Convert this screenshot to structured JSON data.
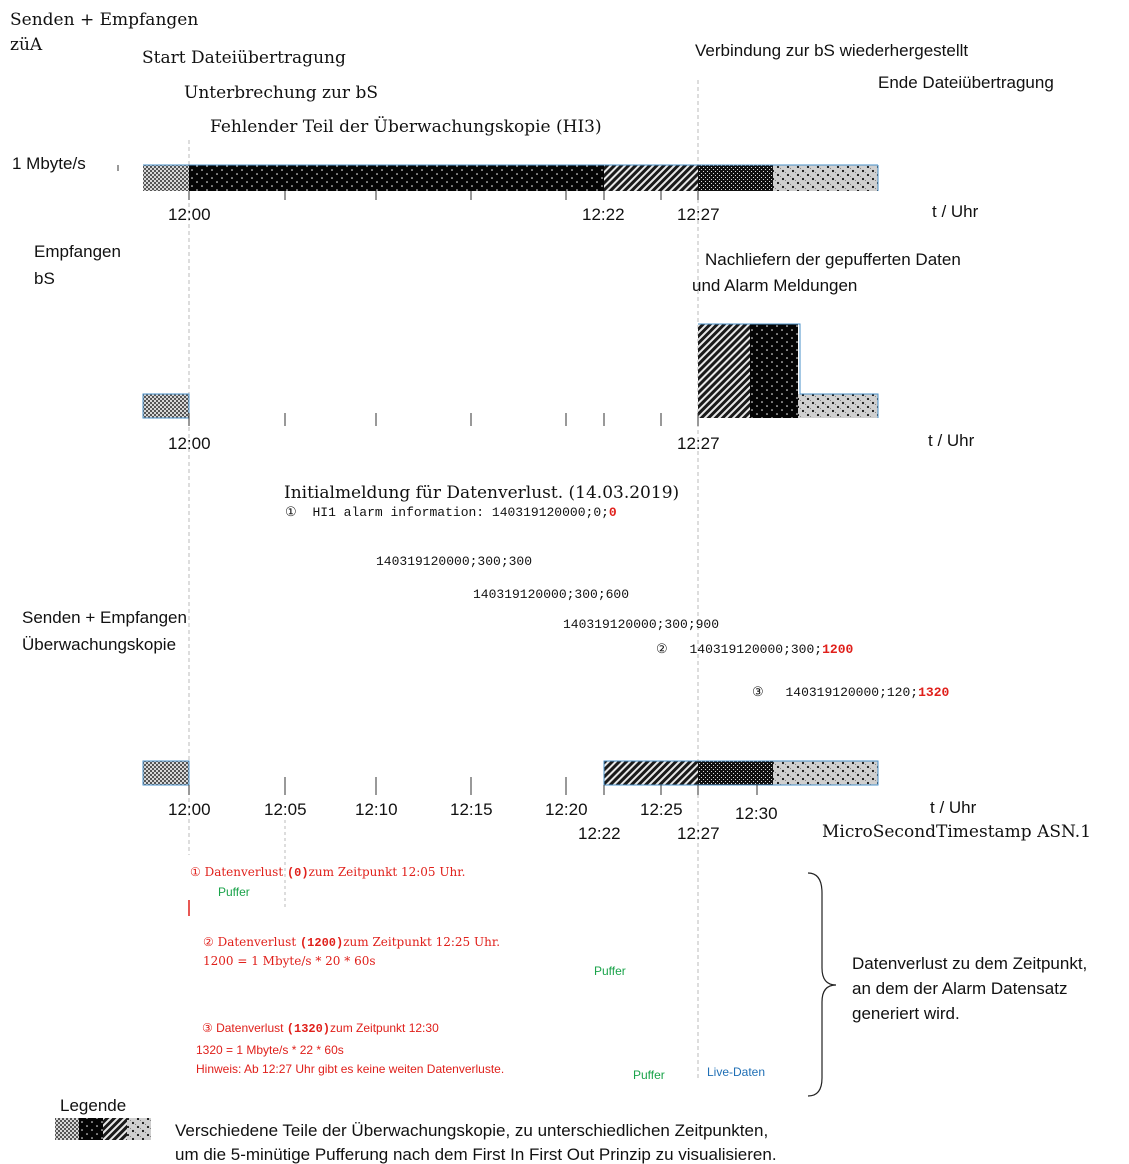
{
  "section_zua": {
    "title_line1": "Senden + Empfangen",
    "title_line2": "züA",
    "start_label": "Start Dateiübertragung",
    "interruption_label": "Unterbrechung zur bS",
    "missing_label": "Fehlender Teil der Überwachungskopie (HI3)",
    "reconnect_label": "Verbindung zur bS wiederhergestellt",
    "end_label": "Ende Dateiübertragung",
    "rate_label": "1 Mbyte/s",
    "tick_labels": [
      "12:00",
      "12:22",
      "12:27"
    ],
    "axis_label": "t / Uhr"
  },
  "section_bs": {
    "title_line1": "Empfangen",
    "title_line2": "bS",
    "note_line1": "Nachliefern der gepufferten Daten",
    "note_line2": "und Alarm Meldungen",
    "tick_labels": [
      "12:00",
      "12:27"
    ],
    "axis_label": "t / Uhr"
  },
  "alarms": {
    "heading": "Initialmeldung für Datenverlust.  (14.03.2019)",
    "msg1_num": "①",
    "msg1_text": "HI1 alarm information: 140319120000;0;",
    "msg1_value": "0",
    "msg2_text": "140319120000;300;300",
    "msg3_text": "140319120000;300;600",
    "msg4_text": "140319120000;300;900",
    "msg5_num": "②",
    "msg5_text": "140319120000;300;",
    "msg5_value": "1200",
    "msg6_num": "③",
    "msg6_text": "140319120000;120;",
    "msg6_value": "1320"
  },
  "section_copy": {
    "title_line1": "Senden + Empfangen",
    "title_line2": "Überwachungskopie",
    "tick_labels": [
      "12:00",
      "12:05",
      "12:10",
      "12:15",
      "12:20",
      "12:25",
      "12:30"
    ],
    "tick_labels_lower": [
      "12:22",
      "12:27"
    ],
    "axis_label": "t / Uhr",
    "timestamp_label": "MicroSecondTimestamp ASN.1"
  },
  "losses": {
    "l1_prefix": "① Datenverlust ",
    "l1_value": "(0)",
    "l1_suffix": "zum Zeitpunkt 12:05 Uhr.",
    "l2_prefix": "② Datenverlust ",
    "l2_value": "(1200)",
    "l2_suffix": "zum Zeitpunkt 12:25 Uhr.",
    "l2_formula": "1200 = 1 Mbyte/s * 20 * 60s",
    "l3_prefix": "③  Datenverlust ",
    "l3_value": "(1320)",
    "l3_suffix": "zum Zeitpunkt 12:30",
    "l3_formula": "1320 = 1 Mbyte/s * 22 * 60s",
    "l3_note": "Hinweis:  Ab 12:27 Uhr gibt es keine weiten Datenverluste.",
    "buffer_label": "Puffer",
    "live_label": "Live-Daten",
    "brace_line1": "Datenverlust zu dem Zeitpunkt,",
    "brace_line2": "an dem der Alarm Datensatz",
    "brace_line3": "generiert wird."
  },
  "legend": {
    "title": "Legende",
    "line1": "Verschiedene Teile der Überwachungskopie, zu unterschiedlichen Zeitpunkten,",
    "line2": "um die 5-minütige Pufferung nach dem First In First Out Prinzip zu visualisieren."
  },
  "colors": {
    "alarm_red": "#e0201b",
    "buffer_green": "#1aa34a",
    "live_blue": "#1f6fb5",
    "segment_border": "#4a90c8"
  }
}
